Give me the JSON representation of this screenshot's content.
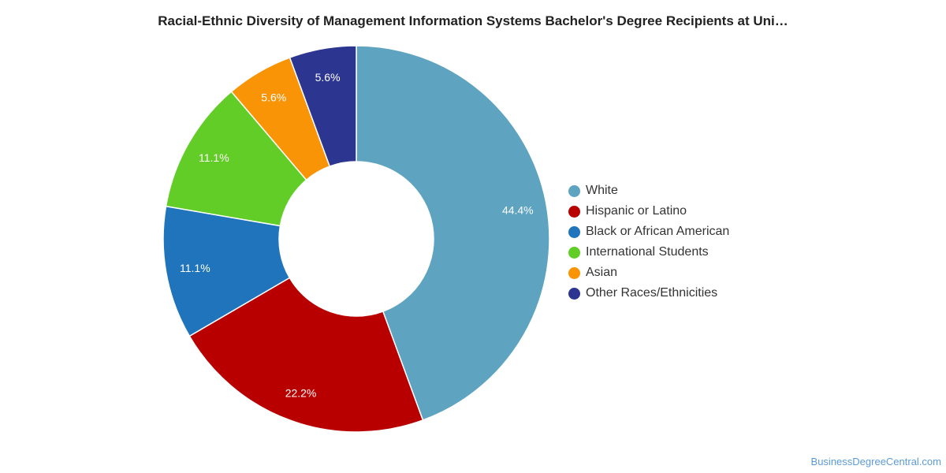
{
  "chart_data": {
    "type": "pie",
    "title": "Racial-Ethnic Diversity of Management Information Systems Bachelor's Degree Recipients at Uni…",
    "donut": true,
    "legend_position": "right",
    "slices": [
      {
        "label": "White",
        "value": 44.4,
        "display": "44.4%",
        "color": "#5ea3c0"
      },
      {
        "label": "Hispanic or Latino",
        "value": 22.2,
        "display": "22.2%",
        "color": "#b90000"
      },
      {
        "label": "Black or African American",
        "value": 11.1,
        "display": "11.1%",
        "color": "#1f74bc"
      },
      {
        "label": "International Students",
        "value": 11.1,
        "display": "11.1%",
        "color": "#62cd26"
      },
      {
        "label": "Asian",
        "value": 5.6,
        "display": "5.6%",
        "color": "#f89406"
      },
      {
        "label": "Other Races/Ethnicities",
        "value": 5.6,
        "display": "5.6%",
        "color": "#2c3590"
      }
    ]
  },
  "footer": {
    "credit": "BusinessDegreeCentral.com"
  }
}
